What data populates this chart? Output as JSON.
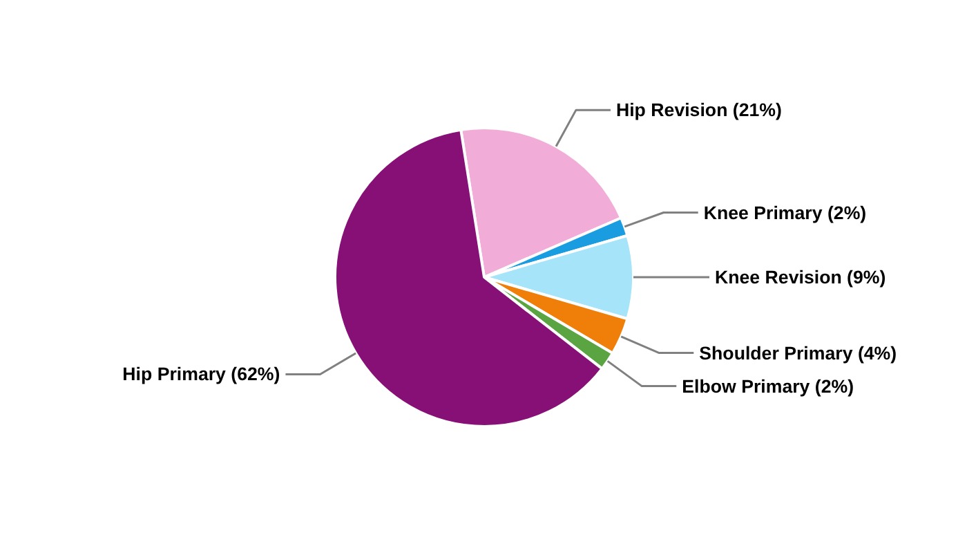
{
  "chart_data": {
    "type": "pie",
    "categories": [
      "Hip Revision",
      "Knee Primary",
      "Knee Revision",
      "Shoulder Primary",
      "Elbow Primary",
      "Hip Primary"
    ],
    "values": [
      21,
      2,
      9,
      4,
      2,
      62
    ],
    "colors": [
      "#f2acd8",
      "#1a9de0",
      "#a6e4fa",
      "#f07f09",
      "#5aa541",
      "#871077"
    ],
    "value_labels": [
      "(21%)",
      "(2%)",
      "(9%)",
      "(4%)",
      "(2%)",
      "(62%)"
    ]
  }
}
